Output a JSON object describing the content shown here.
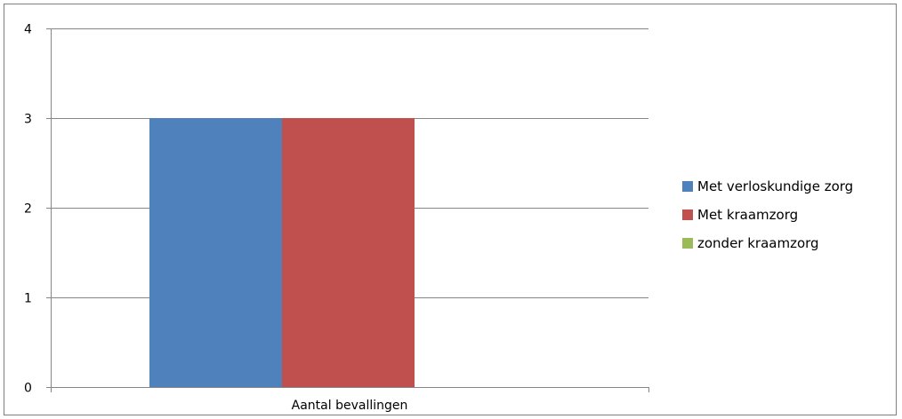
{
  "chart_data": {
    "type": "bar",
    "categories": [
      "Aantal bevallingen"
    ],
    "series": [
      {
        "name": "Met verloskundige zorg",
        "values": [
          3
        ],
        "color": "#4f81bd"
      },
      {
        "name": "Met kraamzorg",
        "values": [
          3
        ],
        "color": "#c0504d"
      },
      {
        "name": "zonder kraamzorg",
        "values": [
          0
        ],
        "color": "#9bbb59"
      }
    ],
    "title": "",
    "xlabel": "",
    "ylabel": "",
    "ylim": [
      0,
      4
    ],
    "yticks": [
      "0",
      "1",
      "2",
      "3",
      "4"
    ],
    "grid": true,
    "gridline_color": "#868686",
    "legend_position": "right"
  }
}
